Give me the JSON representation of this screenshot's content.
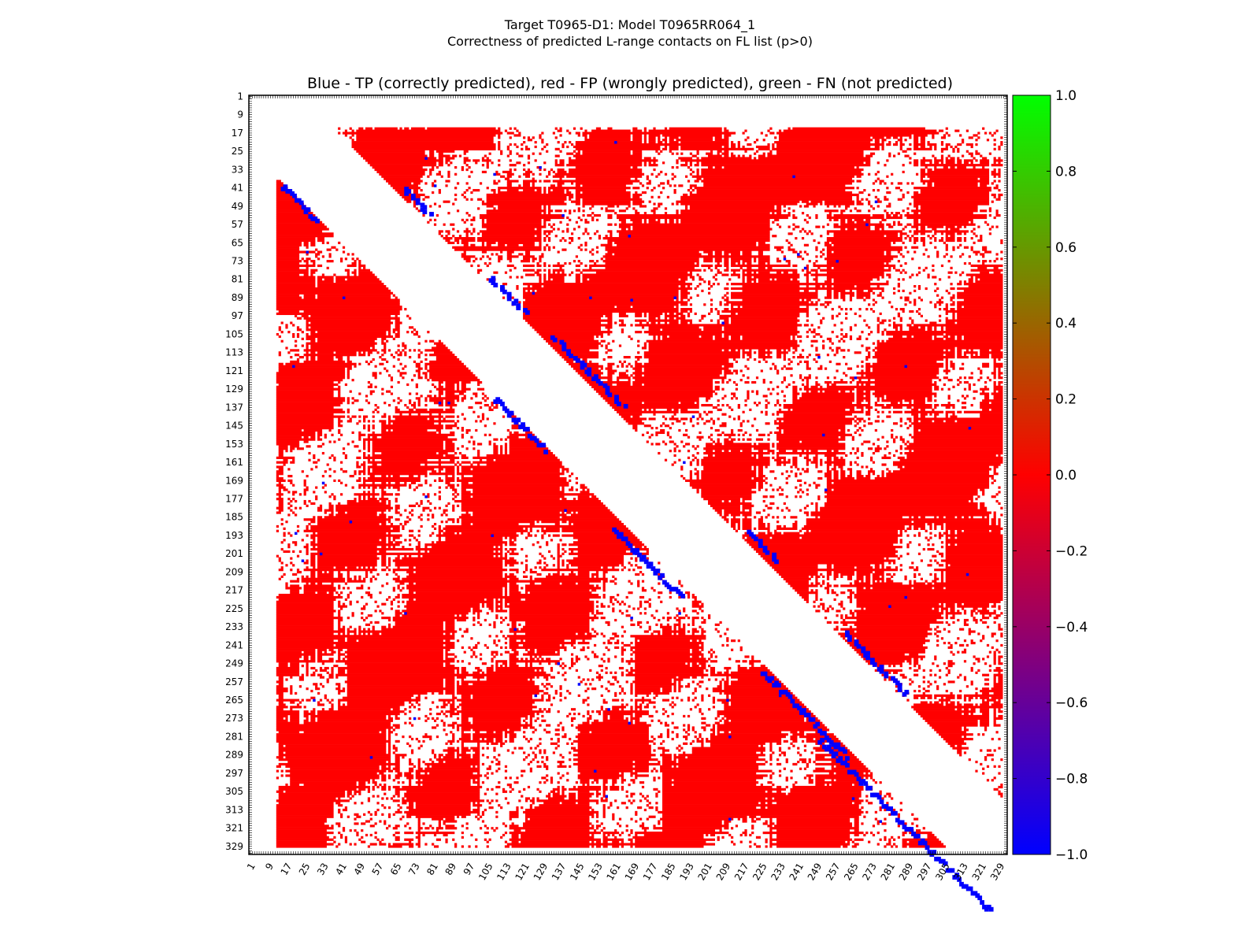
{
  "chart_data": {
    "type": "heatmap",
    "title": "Target T0965-D1: Model T0965RR064_1",
    "subtitle": "Correctness of predicted L-range contacts on FL list (p>0)",
    "plot_title": "Blue - TP (correctly predicted), red - FP (wrongly predicted), green - FN (not predicted)",
    "xlabel": "",
    "ylabel": "",
    "residue_range": [
      1,
      332
    ],
    "tick_labels": [
      "1",
      "9",
      "17",
      "25",
      "33",
      "41",
      "49",
      "57",
      "65",
      "73",
      "81",
      "89",
      "97",
      "105",
      "113",
      "121",
      "129",
      "137",
      "145",
      "153",
      "161",
      "169",
      "177",
      "185",
      "193",
      "201",
      "209",
      "217",
      "225",
      "233",
      "241",
      "249",
      "257",
      "265",
      "273",
      "281",
      "289",
      "297",
      "305",
      "313",
      "321",
      "329"
    ],
    "upper_triangle": {
      "min_separation": 23,
      "residue_start": 15,
      "residue_end": 329
    },
    "lower_triangle": {
      "min_separation": 24,
      "residue_start": 13,
      "residue_end": 329
    },
    "colorbar": {
      "min": -1.0,
      "max": 1.0,
      "tick_labels": [
        "1.0",
        "0.8",
        "0.6",
        "0.4",
        "0.2",
        "0.0",
        "−0.2",
        "−0.4",
        "−0.6",
        "−0.8",
        "−1.0"
      ],
      "stops": [
        "#0000ff",
        "#ff0000",
        "#00ff00"
      ]
    },
    "colors": {
      "tp": "#0000ff",
      "fp": "#ff0000",
      "fn": "#00ff00"
    },
    "tp_diagonal_bands": [
      {
        "upper": true,
        "from": 41,
        "to": 52,
        "offset": 27
      },
      {
        "upper": true,
        "from": 80,
        "to": 95,
        "offset": 26
      },
      {
        "upper": true,
        "from": 106,
        "to": 136,
        "offset": 28
      },
      {
        "upper": true,
        "from": 191,
        "to": 204,
        "offset": 28
      },
      {
        "upper": true,
        "from": 235,
        "to": 262,
        "offset": 26
      },
      {
        "upper": false,
        "from": 15,
        "to": 30,
        "offset": 25
      },
      {
        "upper": false,
        "from": 108,
        "to": 130,
        "offset": 25
      },
      {
        "upper": false,
        "from": 160,
        "to": 190,
        "offset": 30
      },
      {
        "upper": false,
        "from": 225,
        "to": 262,
        "offset": 27
      },
      {
        "upper": false,
        "from": 250,
        "to": 325,
        "offset": 32
      }
    ]
  }
}
